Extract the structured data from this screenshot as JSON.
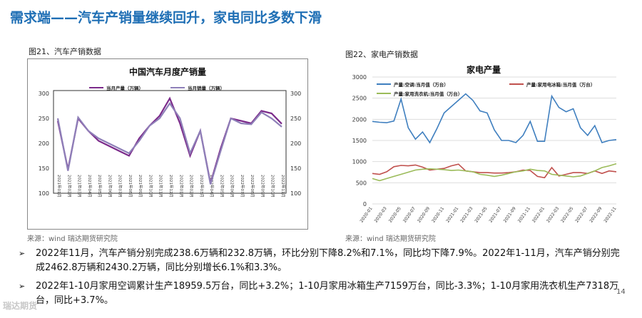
{
  "title": "需求端——汽车产销量继续回升，家电同比多数下滑",
  "left": {
    "label": "图21、汽车产销数据",
    "source": "来源：wind   瑞达期货研究院"
  },
  "right": {
    "label": "图22、家电产销数据",
    "source": "来源：wind   瑞达期货研究院"
  },
  "bullets": [
    "2022年11月，汽车产销分别完成238.6万辆和232.8万辆，环比分别下降8.2%和7.1%，同比均下降7.9%。2022年1-11月，汽车产销分别完成2462.8万辆和2430.2万辆，同比分别增长6.1%和3.3%。",
    "2022年1-10月家用空调累计生产18959.5万台，同比+3.2%；1-10月家用冰箱生产7159万台，同比-3.3%；1-10月家用洗衣机生产7318万台，同比+3.7%。"
  ],
  "bullet_mark": "➢",
  "page_number": "14",
  "logo_text": "瑞达期货",
  "colors": {
    "title": "#1f6fb5",
    "prod": "#7b2a8a",
    "sales": "#8e7fb8",
    "ac": "#3f7fbf",
    "fridge": "#c0504d",
    "washer": "#9bbb59"
  },
  "chart_data": [
    {
      "type": "line",
      "title": "中国汽车月度产销量",
      "categories": [
        "2021年01月",
        "2021年02月",
        "2021年03月",
        "2021年04月",
        "2021年05月",
        "2021年06月",
        "2021年07月",
        "2021年08月",
        "2021年09月",
        "2021年10月",
        "2021年11月",
        "2021年12月",
        "2022年01月",
        "2022年02月",
        "2022年03月",
        "2022年04月",
        "2022年05月",
        "2022年06月",
        "2022年07月",
        "2022年08月",
        "2022年09月",
        "2022年10月",
        "2022年11月"
      ],
      "series": [
        {
          "name": "当月产量（万辆）",
          "values": [
            245,
            148,
            250,
            225,
            205,
            195,
            185,
            175,
            210,
            235,
            255,
            290,
            240,
            175,
            225,
            120,
            190,
            250,
            245,
            240,
            265,
            260,
            239
          ]
        },
        {
          "name": "当月销量（万辆）",
          "values": [
            250,
            145,
            252,
            225,
            210,
            200,
            190,
            180,
            205,
            235,
            250,
            280,
            250,
            180,
            225,
            118,
            185,
            250,
            240,
            238,
            262,
            250,
            233
          ]
        }
      ],
      "yticks": [
        100,
        150,
        200,
        250,
        300
      ],
      "ylim": [
        100,
        300
      ]
    },
    {
      "type": "line",
      "title": "家电产量",
      "categories": [
        "2020-01",
        "2020-02",
        "2020-03",
        "2020-04",
        "2020-05",
        "2020-06",
        "2020-07",
        "2020-08",
        "2020-09",
        "2020-10",
        "2020-11",
        "2020-12",
        "2021-01",
        "2021-02",
        "2021-03",
        "2021-04",
        "2021-05",
        "2021-06",
        "2021-07",
        "2021-08",
        "2021-09",
        "2021-10",
        "2021-11",
        "2021-12",
        "2022-01",
        "2022-02",
        "2022-03",
        "2022-04",
        "2022-05",
        "2022-06",
        "2022-07",
        "2022-08",
        "2022-09",
        "2022-10",
        "2022-11"
      ],
      "tick_labels": [
        "2020-01",
        "2020-03",
        "2020-05",
        "2020-07",
        "2020-09",
        "2020-11",
        "2021-01",
        "2021-03",
        "2021-05",
        "2021-07",
        "2021-09",
        "2021-11",
        "2022-01",
        "2022-03",
        "2022-05",
        "2022-07",
        "2022-09",
        "2022-11"
      ],
      "series": [
        {
          "name": "产量:空调:当月值（万台）",
          "values": [
            1950,
            1930,
            1920,
            1960,
            2480,
            1800,
            1530,
            1700,
            1450,
            1780,
            2150,
            2300,
            2450,
            2600,
            2450,
            2200,
            2150,
            1750,
            1500,
            1500,
            1450,
            1620,
            1950,
            1480,
            1480,
            2550,
            2280,
            2180,
            2250,
            1800,
            1620,
            1850,
            1450,
            1500,
            1520
          ]
        },
        {
          "name": "产量:家用电冰箱:当月值（万台）",
          "values": [
            720,
            700,
            760,
            880,
            910,
            900,
            920,
            870,
            800,
            820,
            840,
            900,
            940,
            780,
            760,
            740,
            740,
            730,
            730,
            740,
            760,
            800,
            790,
            650,
            620,
            860,
            660,
            700,
            740,
            740,
            720,
            780,
            720,
            780,
            760
          ]
        },
        {
          "name": "产量:家用洗衣机:当月值（万台）",
          "values": [
            600,
            550,
            600,
            650,
            700,
            750,
            800,
            820,
            830,
            820,
            810,
            790,
            800,
            780,
            760,
            700,
            680,
            650,
            680,
            720,
            760,
            780,
            820,
            790,
            780,
            700,
            680,
            660,
            640,
            660,
            720,
            780,
            860,
            900,
            950
          ]
        }
      ],
      "yticks": [
        0,
        500,
        1000,
        1500,
        2000,
        2500,
        3000
      ],
      "ylim": [
        0,
        3000
      ]
    }
  ]
}
